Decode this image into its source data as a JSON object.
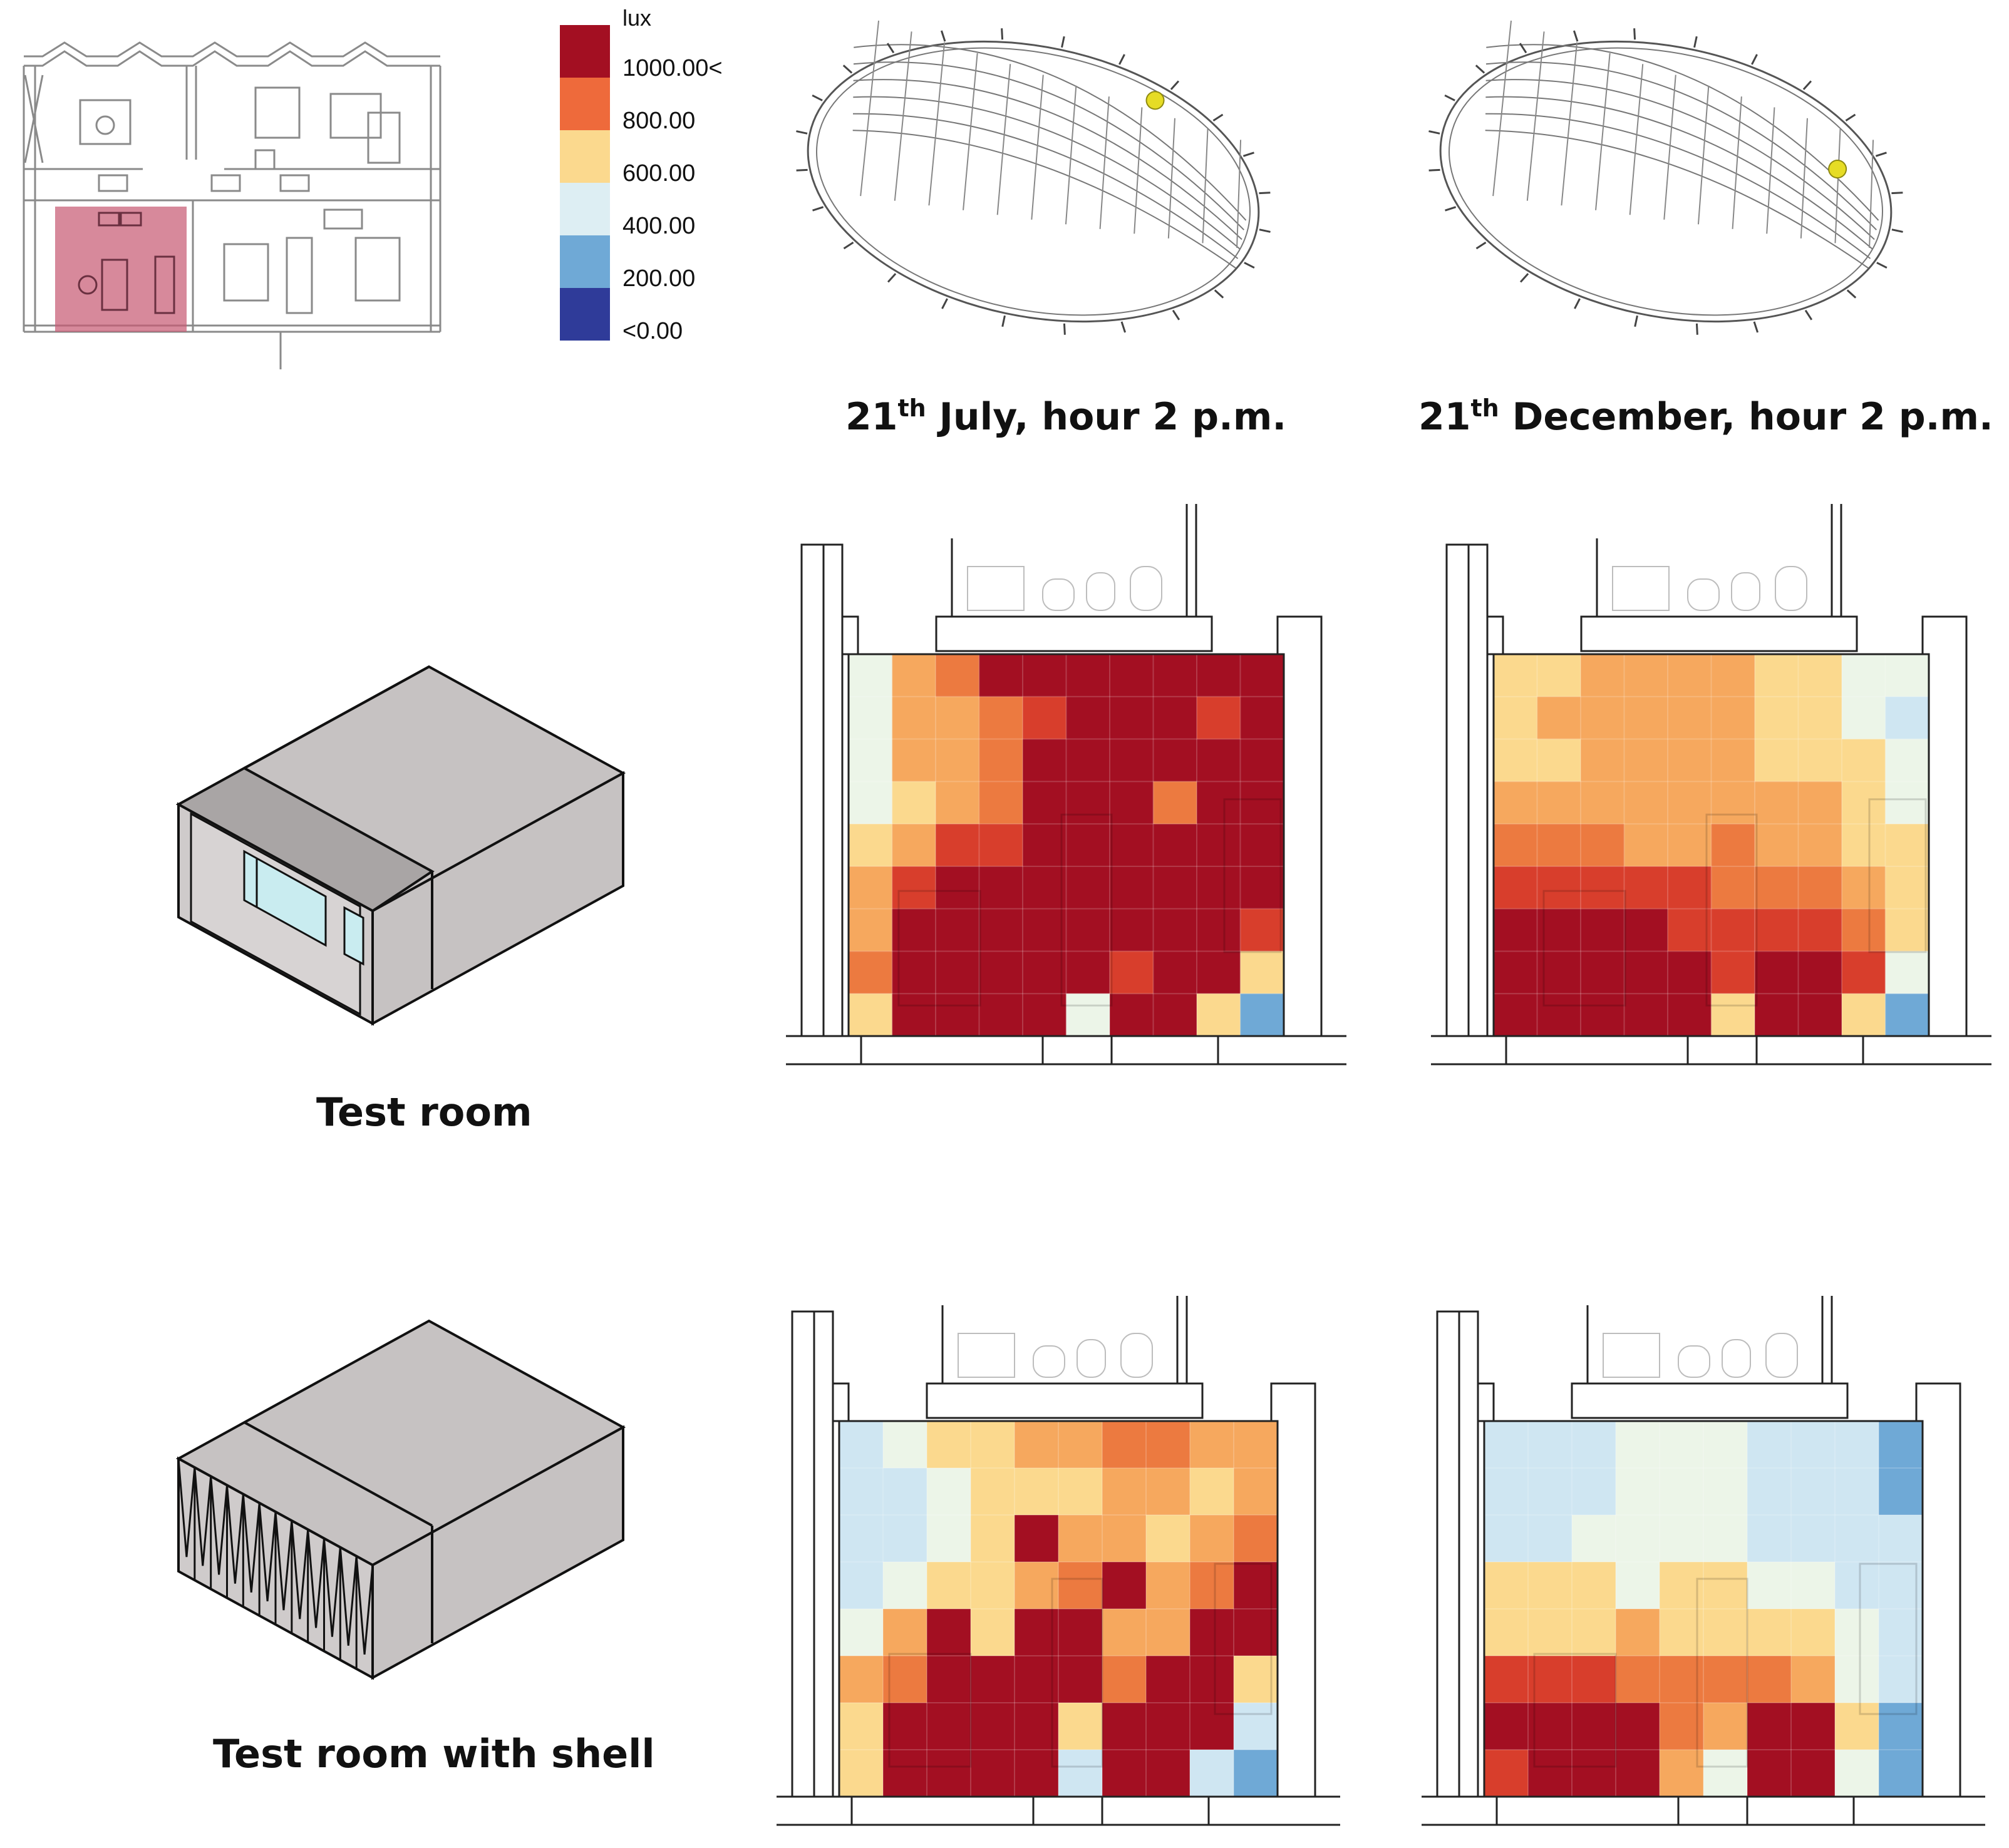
{
  "legend": {
    "unit": "lux",
    "labels": [
      "1000.00<",
      "800.00",
      "600.00",
      "400.00",
      "200.00",
      "<0.00"
    ],
    "colors": [
      "#a30f22",
      "#ee6a3b",
      "#fbd98e",
      "#ddeef3",
      "#6fa9d6",
      "#2f3b99"
    ]
  },
  "palette": [
    "#2f3b99",
    "#6fa9d6",
    "#cfe6f2",
    "#ecf5e8",
    "#fbd98e",
    "#f6a85e",
    "#ec7a40",
    "#d83e2c",
    "#a30f22"
  ],
  "columns": {
    "july": {
      "day": "21",
      "suffix": "th",
      "rest": "July, hour 2 p.m."
    },
    "december": {
      "day": "21",
      "suffix": "th",
      "rest": "December, hour 2 p.m."
    }
  },
  "rows": {
    "test_room": {
      "caption": "Test room"
    },
    "test_room_shell": {
      "caption": "Test room with shell"
    }
  },
  "sunpath": {
    "july_sun": {
      "azimuth_deg": 125
    },
    "december_sun": {
      "azimuth_deg": 158
    }
  },
  "heatmaps": {
    "july_room": [
      [
        3,
        5,
        6,
        8,
        8,
        8,
        8,
        8,
        8,
        8
      ],
      [
        3,
        5,
        5,
        6,
        7,
        8,
        8,
        8,
        7,
        8
      ],
      [
        3,
        5,
        5,
        6,
        8,
        8,
        8,
        8,
        8,
        8
      ],
      [
        3,
        4,
        5,
        6,
        8,
        8,
        8,
        6,
        8,
        8
      ],
      [
        4,
        5,
        7,
        7,
        8,
        8,
        8,
        8,
        8,
        8
      ],
      [
        5,
        7,
        8,
        8,
        8,
        8,
        8,
        8,
        8,
        8
      ],
      [
        5,
        8,
        8,
        8,
        8,
        8,
        8,
        8,
        8,
        7
      ],
      [
        6,
        8,
        8,
        8,
        8,
        8,
        7,
        8,
        8,
        4
      ],
      [
        4,
        8,
        8,
        8,
        8,
        3,
        8,
        8,
        4,
        1
      ]
    ],
    "december_room": [
      [
        4,
        4,
        5,
        5,
        5,
        5,
        4,
        4,
        3,
        3
      ],
      [
        4,
        5,
        5,
        5,
        5,
        5,
        4,
        4,
        3,
        2
      ],
      [
        4,
        4,
        5,
        5,
        5,
        5,
        4,
        4,
        4,
        3
      ],
      [
        5,
        5,
        5,
        5,
        5,
        5,
        5,
        5,
        4,
        3
      ],
      [
        6,
        6,
        6,
        5,
        5,
        6,
        5,
        5,
        4,
        4
      ],
      [
        7,
        7,
        7,
        7,
        7,
        6,
        6,
        6,
        5,
        4
      ],
      [
        8,
        8,
        8,
        8,
        7,
        7,
        7,
        7,
        6,
        4
      ],
      [
        8,
        8,
        8,
        8,
        8,
        7,
        8,
        8,
        7,
        3
      ],
      [
        8,
        8,
        8,
        8,
        8,
        4,
        8,
        8,
        4,
        1
      ]
    ],
    "july_shell": [
      [
        2,
        3,
        4,
        4,
        5,
        5,
        6,
        6,
        5,
        5
      ],
      [
        2,
        2,
        3,
        4,
        4,
        4,
        5,
        5,
        4,
        5
      ],
      [
        2,
        2,
        3,
        4,
        8,
        5,
        5,
        4,
        5,
        6
      ],
      [
        2,
        3,
        4,
        4,
        5,
        6,
        8,
        5,
        6,
        8
      ],
      [
        3,
        5,
        8,
        4,
        8,
        8,
        5,
        5,
        8,
        8
      ],
      [
        5,
        6,
        8,
        8,
        8,
        8,
        6,
        8,
        8,
        4
      ],
      [
        4,
        8,
        8,
        8,
        8,
        4,
        8,
        8,
        8,
        2
      ],
      [
        4,
        8,
        8,
        8,
        8,
        2,
        8,
        8,
        2,
        1
      ]
    ],
    "december_shell": [
      [
        2,
        2,
        2,
        3,
        3,
        3,
        2,
        2,
        2,
        1
      ],
      [
        2,
        2,
        2,
        3,
        3,
        3,
        2,
        2,
        2,
        1
      ],
      [
        2,
        2,
        3,
        3,
        3,
        3,
        2,
        2,
        2,
        2
      ],
      [
        4,
        4,
        4,
        3,
        4,
        4,
        3,
        3,
        2,
        2
      ],
      [
        4,
        4,
        4,
        5,
        4,
        4,
        4,
        4,
        3,
        2
      ],
      [
        7,
        7,
        7,
        6,
        6,
        6,
        6,
        5,
        3,
        2
      ],
      [
        8,
        8,
        8,
        8,
        6,
        5,
        8,
        8,
        4,
        1
      ],
      [
        7,
        8,
        8,
        8,
        5,
        3,
        8,
        8,
        3,
        1
      ]
    ]
  }
}
